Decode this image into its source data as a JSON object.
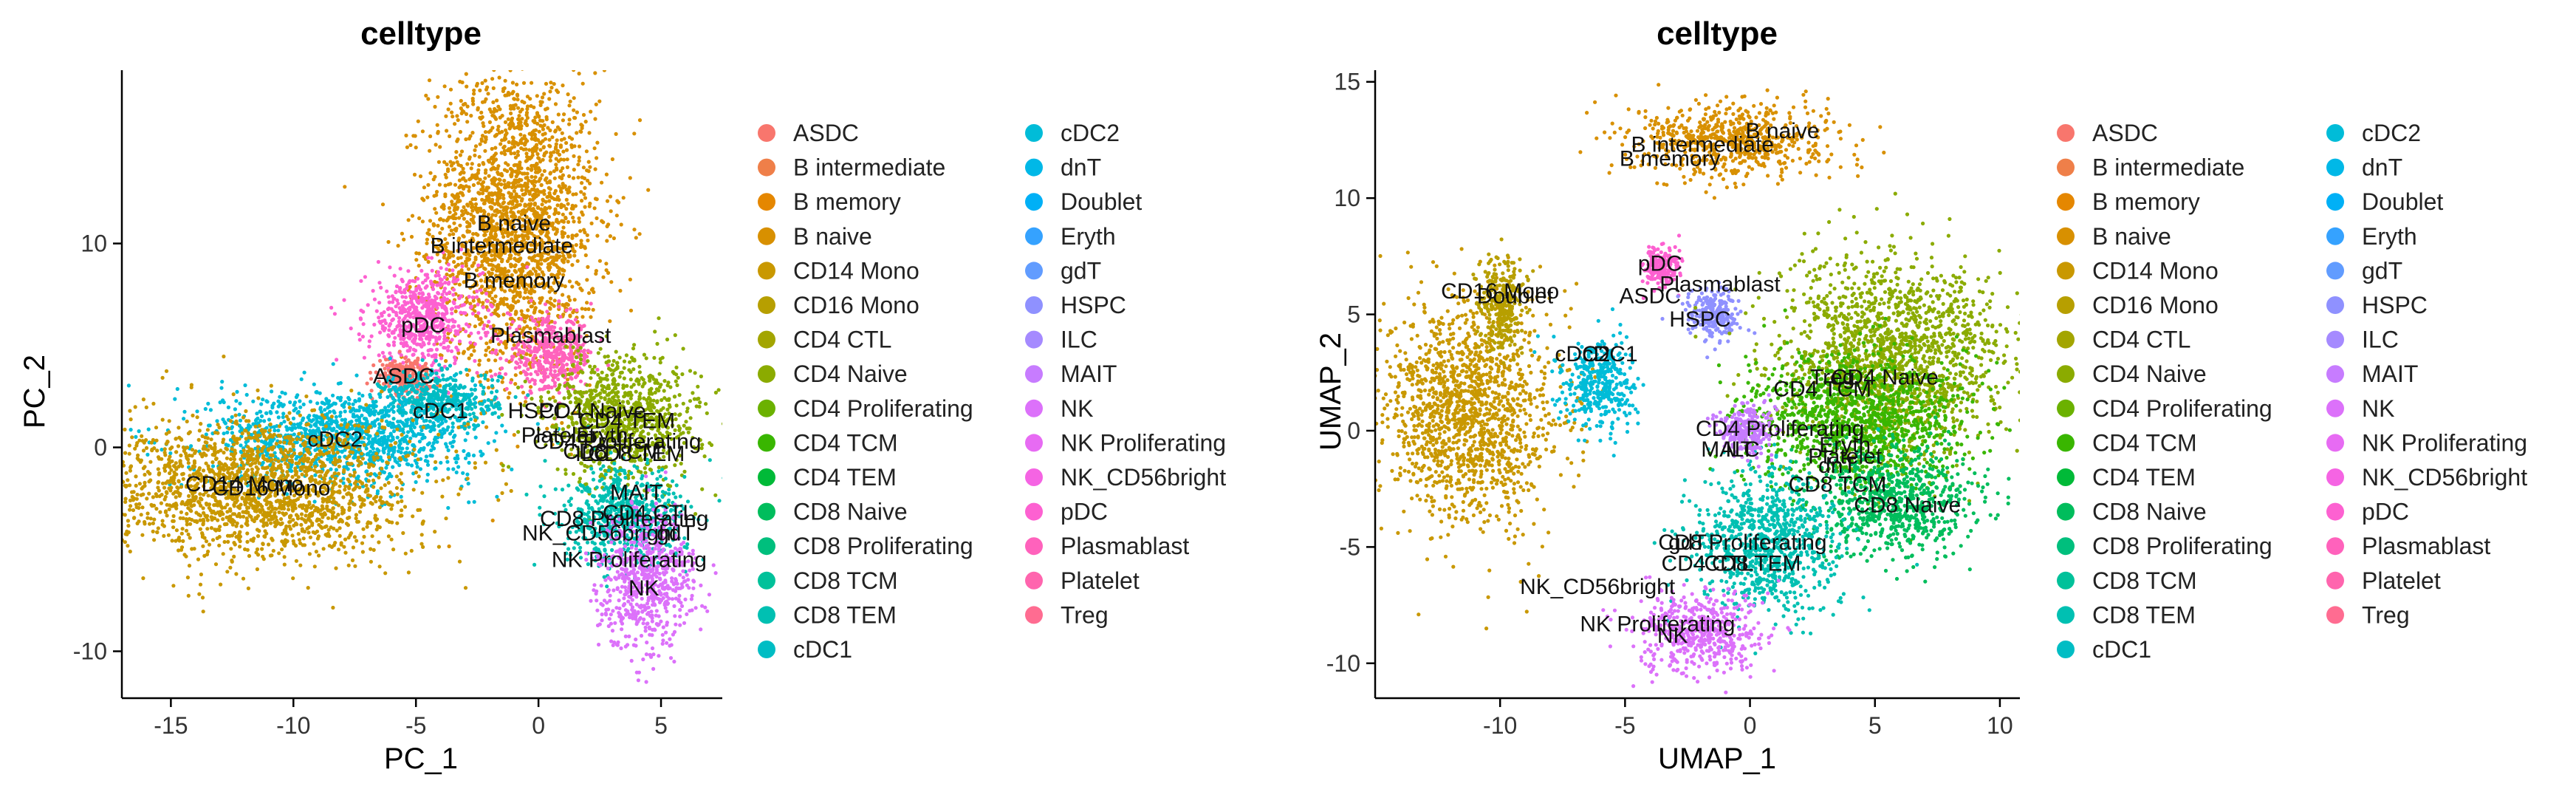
{
  "chart_data": [
    {
      "type": "scatter",
      "title": "celltype",
      "xlabel": "PC_1",
      "ylabel": "PC_2",
      "xlim": [
        -17,
        7.5
      ],
      "ylim": [
        -12.3,
        18.5
      ],
      "xticks": [
        -15,
        -10,
        -5,
        0,
        5
      ],
      "yticks": [
        -10,
        0,
        10
      ],
      "grid": false,
      "legend_position": "right, two columns",
      "clusters": [
        {
          "name": "B naive",
          "x": -1.0,
          "y": 11.0,
          "sx": 1.9,
          "sy": 4.2
        },
        {
          "name": "pDC",
          "x": -4.7,
          "y": 6.3,
          "sx": 1.3,
          "sy": 1.3
        },
        {
          "name": "Plasmablast",
          "x": 0.5,
          "y": 4.5,
          "sx": 1.0,
          "sy": 1.0
        },
        {
          "name": "ASDC",
          "x": -5.5,
          "y": 3.5,
          "sx": 0.6,
          "sy": 0.5
        },
        {
          "name": "cDC1",
          "x": -4.0,
          "y": 2.3,
          "sx": 1.3,
          "sy": 0.8
        },
        {
          "name": "cDC2",
          "x": -8.0,
          "y": 0.5,
          "sx": 3.0,
          "sy": 1.3
        },
        {
          "name": "CD14 Mono",
          "x": -11.5,
          "y": -2.0,
          "sx": 3.5,
          "sy": 1.9
        },
        {
          "name": "CD4 Naive",
          "x": 3.5,
          "y": 1.5,
          "sx": 1.7,
          "sy": 1.7
        },
        {
          "name": "CD8 TEM",
          "x": 3.5,
          "y": -3.5,
          "sx": 1.4,
          "sy": 1.3
        },
        {
          "name": "NK",
          "x": 4.4,
          "y": -6.5,
          "sx": 1.1,
          "sy": 1.8
        }
      ],
      "labels": [
        {
          "text": "B naive",
          "x": -1.0,
          "y": 11.0
        },
        {
          "text": "B intermediate",
          "x": -1.5,
          "y": 9.9
        },
        {
          "text": "B memory",
          "x": -1.0,
          "y": 8.2
        },
        {
          "text": "pDC",
          "x": -4.7,
          "y": 6.0
        },
        {
          "text": "Plasmablast",
          "x": 0.5,
          "y": 5.5
        },
        {
          "text": "ASDC",
          "x": -5.5,
          "y": 3.5
        },
        {
          "text": "cDC1",
          "x": -4.0,
          "y": 1.8
        },
        {
          "text": "cDC2",
          "x": -8.3,
          "y": 0.4
        },
        {
          "text": "CD14 Mono",
          "x": -12.0,
          "y": -1.8
        },
        {
          "text": "CD16 Mono",
          "x": -10.9,
          "y": -2.0
        },
        {
          "text": "HSPC",
          "x": 0.0,
          "y": 1.8
        },
        {
          "text": "CD4 Naive",
          "x": 2.2,
          "y": 1.8
        },
        {
          "text": "CD4 TEM",
          "x": 3.6,
          "y": 1.3
        },
        {
          "text": "Platelet",
          "x": 0.8,
          "y": 0.6
        },
        {
          "text": "Eryth",
          "x": 2.6,
          "y": 0.6
        },
        {
          "text": "CD4 Proliferating",
          "x": 3.2,
          "y": 0.3
        },
        {
          "text": "CD8 TCM",
          "x": 3.0,
          "y": -0.2
        },
        {
          "text": "ILC",
          "x": 2.2,
          "y": -0.3
        },
        {
          "text": "CD8 TEM",
          "x": 4.0,
          "y": -0.3
        },
        {
          "text": "MAIT",
          "x": 4.0,
          "y": -2.2
        },
        {
          "text": "CD4 CTL",
          "x": 4.5,
          "y": -3.2
        },
        {
          "text": "CD8 Proliferating",
          "x": 3.5,
          "y": -3.5
        },
        {
          "text": "NK_CD56bright",
          "x": 2.5,
          "y": -4.2
        },
        {
          "text": "gdT",
          "x": 5.6,
          "y": -4.2
        },
        {
          "text": "NK Proliferating",
          "x": 3.7,
          "y": -5.5
        },
        {
          "text": "NK",
          "x": 4.3,
          "y": -6.9
        }
      ]
    },
    {
      "type": "scatter",
      "title": "celltype",
      "xlabel": "UMAP_1",
      "ylabel": "UMAP_2",
      "xlim": [
        -15,
        10.8
      ],
      "ylim": [
        -11.5,
        15.5
      ],
      "xticks": [
        -10,
        -5,
        0,
        5,
        10
      ],
      "yticks": [
        -10,
        -5,
        0,
        5,
        10,
        15
      ],
      "grid": false,
      "legend_position": "right, two columns",
      "clusters": [
        {
          "name": "B naive",
          "x": -0.6,
          "y": 12.5,
          "sx": 2.2,
          "sy": 0.9
        },
        {
          "name": "CD14 Mono",
          "x": -11.3,
          "y": 0.8,
          "sx": 2.0,
          "sy": 2.6
        },
        {
          "name": "CD16 Mono",
          "x": -9.9,
          "y": 5.5,
          "sx": 0.5,
          "sy": 1.1
        },
        {
          "name": "cDC2",
          "x": -6.0,
          "y": 2.0,
          "sx": 0.8,
          "sy": 1.1
        },
        {
          "name": "pDC",
          "x": -3.6,
          "y": 7.0,
          "sx": 0.4,
          "sy": 0.5
        },
        {
          "name": "HSPC",
          "x": -1.5,
          "y": 5.0,
          "sx": 0.6,
          "sy": 0.6
        },
        {
          "name": "CD4 Naive",
          "x": 5.8,
          "y": 3.2,
          "sx": 2.5,
          "sy": 2.3
        },
        {
          "name": "CD4 TCM",
          "x": 4.2,
          "y": 0.5,
          "sx": 2.4,
          "sy": 1.6
        },
        {
          "name": "CD8 Naive",
          "x": 5.8,
          "y": -3.0,
          "sx": 1.8,
          "sy": 1.3
        },
        {
          "name": "CD8 TEM",
          "x": 0.6,
          "y": -4.8,
          "sx": 1.6,
          "sy": 1.7
        },
        {
          "name": "MAIT",
          "x": -0.2,
          "y": 0.0,
          "sx": 0.6,
          "sy": 0.6
        },
        {
          "name": "NK",
          "x": -2.0,
          "y": -8.7,
          "sx": 1.4,
          "sy": 1.0
        }
      ],
      "labels": [
        {
          "text": "B naive",
          "x": 1.3,
          "y": 12.9
        },
        {
          "text": "B intermediate",
          "x": -1.9,
          "y": 12.3
        },
        {
          "text": "B memory",
          "x": -3.2,
          "y": 11.7
        },
        {
          "text": "pDC",
          "x": -3.6,
          "y": 7.2
        },
        {
          "text": "Plasmablast",
          "x": -1.2,
          "y": 6.3
        },
        {
          "text": "CD16 Mono",
          "x": -10.0,
          "y": 6.0
        },
        {
          "text": "Doublet",
          "x": -9.4,
          "y": 5.8
        },
        {
          "text": "ASDC",
          "x": -4.0,
          "y": 5.8
        },
        {
          "text": "HSPC",
          "x": -2.0,
          "y": 4.8
        },
        {
          "text": "cDC2",
          "x": -6.7,
          "y": 3.3
        },
        {
          "text": "cDC1",
          "x": -5.6,
          "y": 3.3
        },
        {
          "text": "Treg",
          "x": 3.3,
          "y": 2.3
        },
        {
          "text": "CD4 Naive",
          "x": 5.4,
          "y": 2.3
        },
        {
          "text": "CD4 TCM",
          "x": 2.9,
          "y": 1.8
        },
        {
          "text": "CD4 Proliferating",
          "x": 1.2,
          "y": 0.1
        },
        {
          "text": "Eryth",
          "x": 3.8,
          "y": -0.6
        },
        {
          "text": "MAIT",
          "x": -0.9,
          "y": -0.8
        },
        {
          "text": "ILC",
          "x": -0.3,
          "y": -0.8
        },
        {
          "text": "Platelet",
          "x": 3.8,
          "y": -1.1
        },
        {
          "text": "dnT",
          "x": 3.5,
          "y": -1.5
        },
        {
          "text": "CD8 TCM",
          "x": 3.5,
          "y": -2.3
        },
        {
          "text": "CD8 Naive",
          "x": 6.3,
          "y": -3.2
        },
        {
          "text": "gdT",
          "x": -2.5,
          "y": -4.8
        },
        {
          "text": "CD8 Proliferating",
          "x": -0.3,
          "y": -4.8
        },
        {
          "text": "CD4 CTL",
          "x": -1.7,
          "y": -5.7
        },
        {
          "text": "CD8 TEM",
          "x": 0.1,
          "y": -5.7
        },
        {
          "text": "NK_CD56bright",
          "x": -6.1,
          "y": -6.7
        },
        {
          "text": "NK Proliferating",
          "x": -3.7,
          "y": -8.3
        },
        {
          "text": "NK",
          "x": -3.1,
          "y": -8.8
        }
      ]
    }
  ],
  "legend": {
    "items": [
      {
        "label": "ASDC",
        "color": "#F8766D"
      },
      {
        "label": "B intermediate",
        "color": "#EF7F49"
      },
      {
        "label": "B memory",
        "color": "#E58700"
      },
      {
        "label": "B naive",
        "color": "#D89000"
      },
      {
        "label": "CD14 Mono",
        "color": "#C99800"
      },
      {
        "label": "CD16 Mono",
        "color": "#B79F00"
      },
      {
        "label": "CD4 CTL",
        "color": "#A3A500"
      },
      {
        "label": "CD4 Naive",
        "color": "#8BAB00"
      },
      {
        "label": "CD4 Proliferating",
        "color": "#6BB100"
      },
      {
        "label": "CD4 TCM",
        "color": "#39B600"
      },
      {
        "label": "CD4 TEM",
        "color": "#00BA38"
      },
      {
        "label": "CD8 Naive",
        "color": "#00BD5C"
      },
      {
        "label": "CD8 Proliferating",
        "color": "#00BF7D"
      },
      {
        "label": "CD8 TCM",
        "color": "#00C19A"
      },
      {
        "label": "CD8 TEM",
        "color": "#00C0B2"
      },
      {
        "label": "cDC1",
        "color": "#00BDC4"
      },
      {
        "label": "cDC2",
        "color": "#00BCD8"
      },
      {
        "label": "dnT",
        "color": "#00B8E7"
      },
      {
        "label": "Doublet",
        "color": "#00B0F6"
      },
      {
        "label": "Eryth",
        "color": "#35A2FF"
      },
      {
        "label": "gdT",
        "color": "#619CFF"
      },
      {
        "label": "HSPC",
        "color": "#8F91FF"
      },
      {
        "label": "ILC",
        "color": "#A58AFF"
      },
      {
        "label": "MAIT",
        "color": "#C77CFF"
      },
      {
        "label": "NK",
        "color": "#DC71FA"
      },
      {
        "label": "NK Proliferating",
        "color": "#E76BF3"
      },
      {
        "label": "NK_CD56bright",
        "color": "#F564E3"
      },
      {
        "label": "pDC",
        "color": "#FD61D1"
      },
      {
        "label": "Plasmablast",
        "color": "#FF62BC"
      },
      {
        "label": "Platelet",
        "color": "#FF65AE"
      },
      {
        "label": "Treg",
        "color": "#FF6C91"
      }
    ]
  }
}
